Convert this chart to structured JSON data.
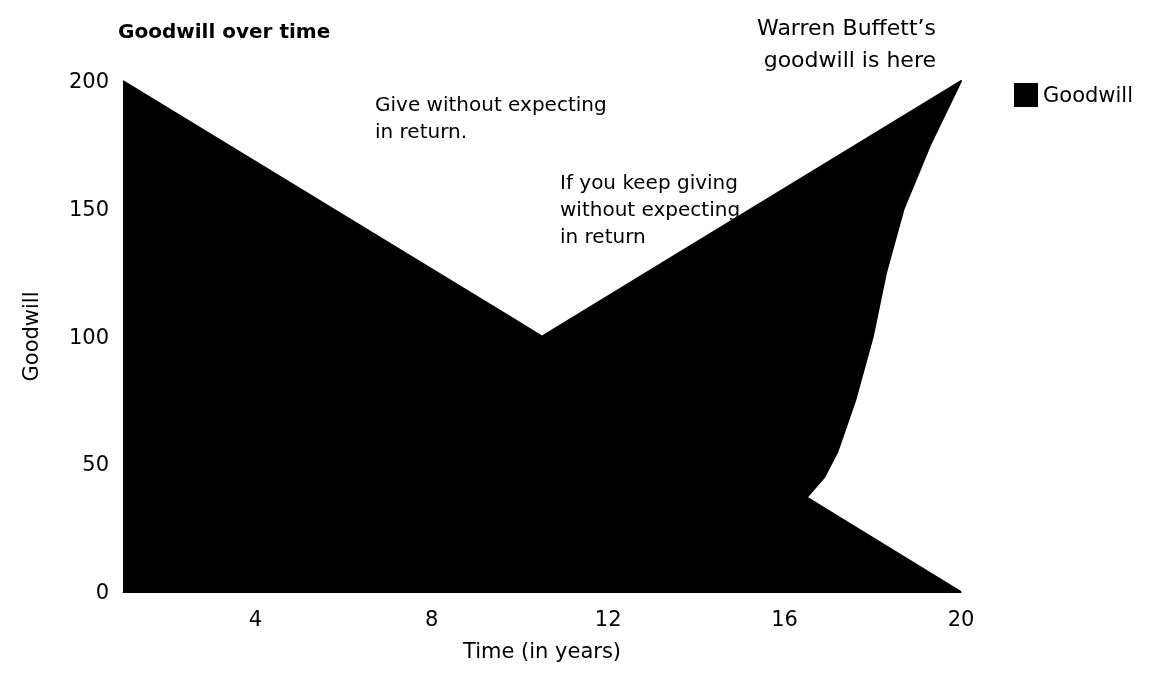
{
  "chart_data": {
    "type": "area",
    "title": "Goodwill over time",
    "xlabel": "Time (in years)",
    "ylabel": "Goodwill",
    "x": [
      1,
      10.5,
      20,
      19.3,
      18.7,
      18.3,
      18,
      17.6,
      17.2,
      16.9,
      16.5,
      20
    ],
    "series": [
      {
        "name": "Goodwill",
        "color": "#000000",
        "values": [
          200,
          100,
          200,
          175,
          150,
          125,
          100,
          75,
          55,
          45,
          37,
          0
        ]
      }
    ],
    "xlim": [
      1,
      20
    ],
    "xticks": [
      4,
      8,
      12,
      16,
      20
    ],
    "ylim": [
      0,
      200
    ],
    "yticks": [
      0,
      50,
      100,
      150,
      200
    ],
    "grid": false,
    "legend": "top right",
    "marker": "none",
    "annotations": [
      "Give without expecting\nin return.",
      "If you keep giving\nwithout expecting\nin return",
      {
        "text": "Warren Buffett’s\ngoodwill is here",
        "x": 20,
        "y": 200
      }
    ]
  }
}
